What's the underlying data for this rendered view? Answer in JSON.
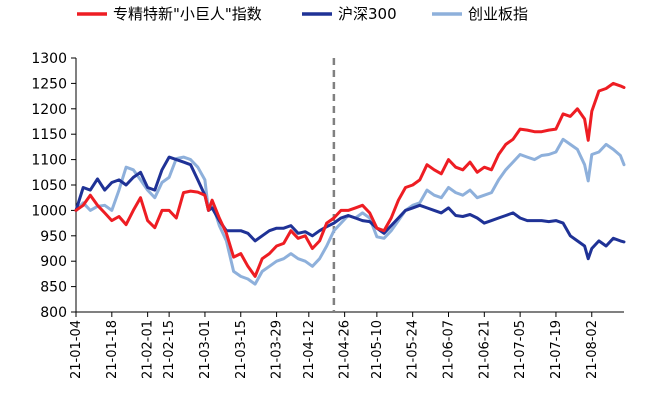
{
  "chart_data": {
    "type": "line",
    "title": "",
    "xlabel": "",
    "ylabel": "",
    "ylim": [
      800,
      1300
    ],
    "yticks": [
      800,
      850,
      900,
      950,
      1000,
      1050,
      1100,
      1150,
      1200,
      1250,
      1300
    ],
    "x_tick_labels": [
      "21-01-04",
      "21-01-18",
      "21-02-01",
      "21-02-15",
      "21-03-01",
      "21-03-15",
      "21-03-29",
      "21-04-12",
      "21-04-26",
      "21-05-10",
      "21-05-24",
      "21-06-07",
      "21-06-21",
      "21-07-05",
      "21-07-19",
      "21-08-02"
    ],
    "x_tick_positions": [
      0,
      10,
      20,
      26,
      36,
      46,
      56,
      65,
      75,
      84,
      94,
      104,
      114,
      124,
      134,
      144
    ],
    "x_max": 153,
    "grid": false,
    "legend_position": "top",
    "reference_line": {
      "x": 72,
      "style": "dashed",
      "color": "#808080"
    },
    "series": [
      {
        "name": "专精特新\"小巨人\"指数",
        "color": "#ee1d23",
        "values": [
          [
            0,
            1000
          ],
          [
            2,
            1010
          ],
          [
            4,
            1030
          ],
          [
            6,
            1010
          ],
          [
            8,
            995
          ],
          [
            10,
            980
          ],
          [
            12,
            988
          ],
          [
            14,
            972
          ],
          [
            16,
            1000
          ],
          [
            18,
            1025
          ],
          [
            20,
            980
          ],
          [
            22,
            966
          ],
          [
            24,
            1000
          ],
          [
            26,
            1000
          ],
          [
            28,
            985
          ],
          [
            30,
            1035
          ],
          [
            32,
            1038
          ],
          [
            34,
            1036
          ],
          [
            36,
            1030
          ],
          [
            37,
            1000
          ],
          [
            38,
            1020
          ],
          [
            40,
            985
          ],
          [
            42,
            955
          ],
          [
            44,
            908
          ],
          [
            46,
            915
          ],
          [
            48,
            890
          ],
          [
            50,
            870
          ],
          [
            52,
            905
          ],
          [
            54,
            915
          ],
          [
            56,
            930
          ],
          [
            58,
            935
          ],
          [
            60,
            960
          ],
          [
            62,
            945
          ],
          [
            64,
            950
          ],
          [
            66,
            925
          ],
          [
            68,
            940
          ],
          [
            70,
            975
          ],
          [
            72,
            985
          ],
          [
            74,
            1000
          ],
          [
            76,
            1000
          ],
          [
            78,
            1005
          ],
          [
            80,
            1010
          ],
          [
            82,
            995
          ],
          [
            84,
            965
          ],
          [
            86,
            960
          ],
          [
            88,
            985
          ],
          [
            90,
            1020
          ],
          [
            92,
            1045
          ],
          [
            94,
            1050
          ],
          [
            96,
            1060
          ],
          [
            98,
            1090
          ],
          [
            100,
            1080
          ],
          [
            102,
            1072
          ],
          [
            104,
            1100
          ],
          [
            106,
            1085
          ],
          [
            108,
            1080
          ],
          [
            110,
            1095
          ],
          [
            112,
            1075
          ],
          [
            114,
            1085
          ],
          [
            116,
            1080
          ],
          [
            118,
            1110
          ],
          [
            120,
            1130
          ],
          [
            122,
            1140
          ],
          [
            124,
            1160
          ],
          [
            126,
            1158
          ],
          [
            128,
            1155
          ],
          [
            130,
            1155
          ],
          [
            132,
            1158
          ],
          [
            134,
            1160
          ],
          [
            136,
            1190
          ],
          [
            138,
            1185
          ],
          [
            140,
            1200
          ],
          [
            142,
            1180
          ],
          [
            143,
            1138
          ],
          [
            144,
            1195
          ],
          [
            146,
            1235
          ],
          [
            148,
            1240
          ],
          [
            150,
            1250
          ],
          [
            152,
            1245
          ],
          [
            153,
            1242
          ]
        ]
      },
      {
        "name": "沪深300",
        "color": "#1f3296",
        "values": [
          [
            0,
            1000
          ],
          [
            2,
            1045
          ],
          [
            4,
            1040
          ],
          [
            6,
            1062
          ],
          [
            8,
            1040
          ],
          [
            10,
            1055
          ],
          [
            12,
            1060
          ],
          [
            14,
            1050
          ],
          [
            16,
            1065
          ],
          [
            18,
            1075
          ],
          [
            20,
            1045
          ],
          [
            22,
            1040
          ],
          [
            24,
            1080
          ],
          [
            26,
            1105
          ],
          [
            28,
            1100
          ],
          [
            30,
            1095
          ],
          [
            32,
            1090
          ],
          [
            34,
            1060
          ],
          [
            36,
            1030
          ],
          [
            37,
            1000
          ],
          [
            38,
            1005
          ],
          [
            40,
            980
          ],
          [
            42,
            960
          ],
          [
            44,
            960
          ],
          [
            46,
            960
          ],
          [
            48,
            955
          ],
          [
            50,
            940
          ],
          [
            52,
            950
          ],
          [
            54,
            960
          ],
          [
            56,
            965
          ],
          [
            58,
            965
          ],
          [
            60,
            970
          ],
          [
            62,
            955
          ],
          [
            64,
            958
          ],
          [
            66,
            950
          ],
          [
            68,
            960
          ],
          [
            70,
            968
          ],
          [
            72,
            975
          ],
          [
            74,
            985
          ],
          [
            76,
            990
          ],
          [
            78,
            985
          ],
          [
            80,
            980
          ],
          [
            82,
            978
          ],
          [
            84,
            965
          ],
          [
            86,
            955
          ],
          [
            88,
            970
          ],
          [
            90,
            985
          ],
          [
            92,
            1000
          ],
          [
            94,
            1005
          ],
          [
            96,
            1010
          ],
          [
            98,
            1005
          ],
          [
            100,
            1000
          ],
          [
            102,
            995
          ],
          [
            104,
            1005
          ],
          [
            106,
            990
          ],
          [
            108,
            988
          ],
          [
            110,
            992
          ],
          [
            112,
            985
          ],
          [
            114,
            975
          ],
          [
            116,
            980
          ],
          [
            118,
            985
          ],
          [
            120,
            990
          ],
          [
            122,
            995
          ],
          [
            124,
            985
          ],
          [
            126,
            980
          ],
          [
            128,
            980
          ],
          [
            130,
            980
          ],
          [
            132,
            978
          ],
          [
            134,
            980
          ],
          [
            136,
            975
          ],
          [
            138,
            950
          ],
          [
            140,
            940
          ],
          [
            142,
            930
          ],
          [
            143,
            905
          ],
          [
            144,
            925
          ],
          [
            146,
            940
          ],
          [
            148,
            930
          ],
          [
            150,
            945
          ],
          [
            152,
            940
          ],
          [
            153,
            938
          ]
        ]
      },
      {
        "name": "创业板指",
        "color": "#8eb0db",
        "values": [
          [
            0,
            1000
          ],
          [
            2,
            1015
          ],
          [
            4,
            1000
          ],
          [
            6,
            1008
          ],
          [
            8,
            1010
          ],
          [
            10,
            1000
          ],
          [
            12,
            1040
          ],
          [
            14,
            1085
          ],
          [
            16,
            1080
          ],
          [
            18,
            1060
          ],
          [
            20,
            1040
          ],
          [
            22,
            1025
          ],
          [
            24,
            1055
          ],
          [
            26,
            1065
          ],
          [
            28,
            1102
          ],
          [
            30,
            1105
          ],
          [
            32,
            1100
          ],
          [
            34,
            1085
          ],
          [
            36,
            1060
          ],
          [
            37,
            1000
          ],
          [
            38,
            1015
          ],
          [
            40,
            970
          ],
          [
            42,
            940
          ],
          [
            44,
            880
          ],
          [
            46,
            870
          ],
          [
            48,
            865
          ],
          [
            50,
            855
          ],
          [
            52,
            880
          ],
          [
            54,
            890
          ],
          [
            56,
            900
          ],
          [
            58,
            905
          ],
          [
            60,
            915
          ],
          [
            62,
            905
          ],
          [
            64,
            900
          ],
          [
            66,
            890
          ],
          [
            68,
            905
          ],
          [
            70,
            930
          ],
          [
            72,
            960
          ],
          [
            74,
            975
          ],
          [
            76,
            990
          ],
          [
            78,
            985
          ],
          [
            80,
            995
          ],
          [
            82,
            985
          ],
          [
            84,
            948
          ],
          [
            86,
            945
          ],
          [
            88,
            960
          ],
          [
            90,
            980
          ],
          [
            92,
            1000
          ],
          [
            94,
            1010
          ],
          [
            96,
            1015
          ],
          [
            98,
            1040
          ],
          [
            100,
            1030
          ],
          [
            102,
            1025
          ],
          [
            104,
            1045
          ],
          [
            106,
            1035
          ],
          [
            108,
            1030
          ],
          [
            110,
            1040
          ],
          [
            112,
            1025
          ],
          [
            114,
            1030
          ],
          [
            116,
            1035
          ],
          [
            118,
            1060
          ],
          [
            120,
            1080
          ],
          [
            122,
            1095
          ],
          [
            124,
            1110
          ],
          [
            126,
            1105
          ],
          [
            128,
            1100
          ],
          [
            130,
            1108
          ],
          [
            132,
            1110
          ],
          [
            134,
            1115
          ],
          [
            136,
            1140
          ],
          [
            138,
            1130
          ],
          [
            140,
            1120
          ],
          [
            142,
            1090
          ],
          [
            143,
            1058
          ],
          [
            144,
            1110
          ],
          [
            146,
            1115
          ],
          [
            148,
            1130
          ],
          [
            150,
            1120
          ],
          [
            152,
            1108
          ],
          [
            153,
            1090
          ]
        ]
      }
    ]
  }
}
